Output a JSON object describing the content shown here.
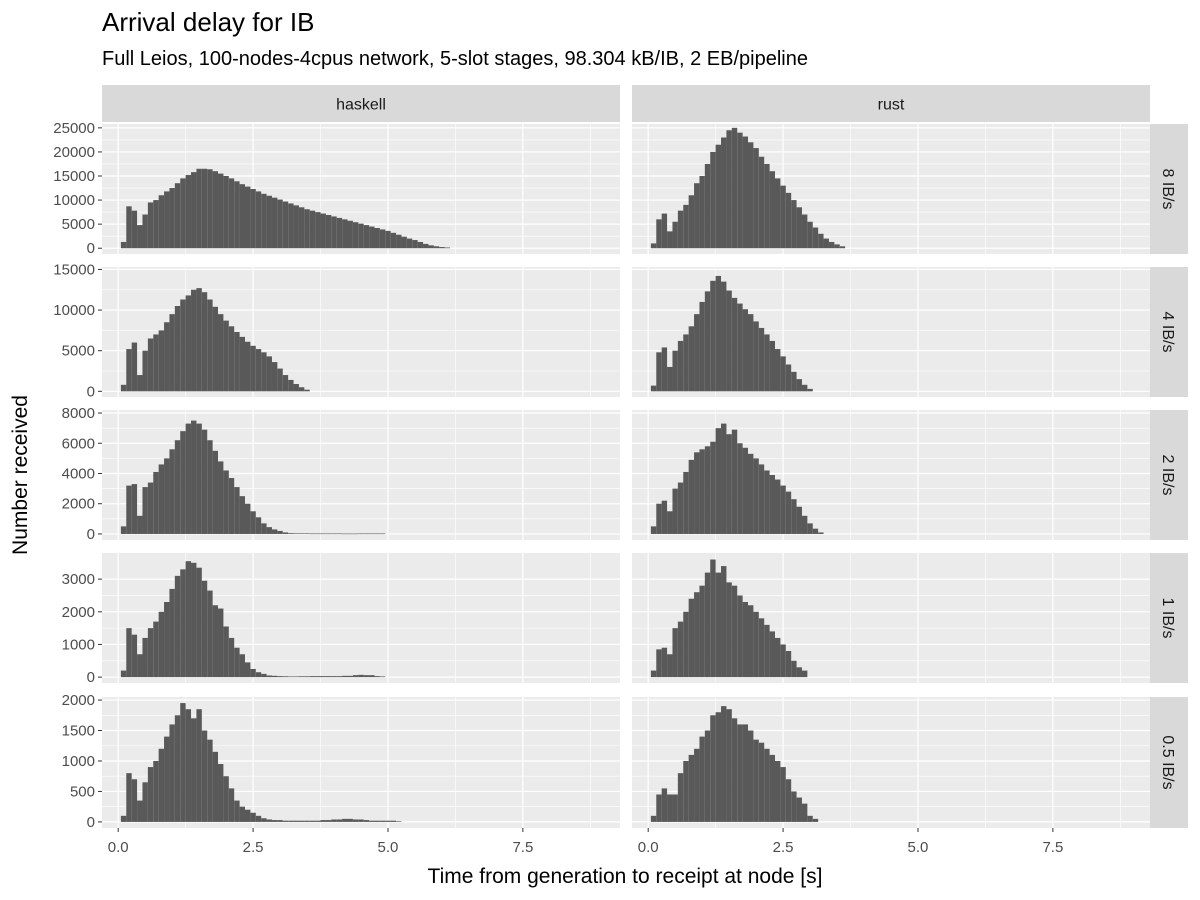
{
  "chart_data": {
    "type": "bar",
    "title": "Arrival delay for IB",
    "subtitle": "Full Leios, 100-nodes-4cpus network, 5-slot stages, 98.304 kB/IB, 2 EB/pipeline",
    "xlabel": "Time from generation to receipt at node [s]",
    "ylabel": "Number received",
    "xlim": [
      -0.3,
      9.3
    ],
    "x_ticks": [
      0.0,
      2.5,
      5.0,
      7.5
    ],
    "x_tick_labels": [
      "0.0",
      "2.5",
      "5.0",
      "7.5"
    ],
    "bin_start": 0.1,
    "bin_width": 0.1,
    "columns": [
      "haskell",
      "rust"
    ],
    "panels": [
      {
        "row": "8 IB/s",
        "ylim": [
          -1200,
          25800
        ],
        "y_ticks": [
          0,
          5000,
          10000,
          15000,
          20000,
          25000
        ],
        "y_tick_labels": [
          "0",
          "5000",
          "10000",
          "15000",
          "20000",
          "25000"
        ],
        "series": [
          {
            "name": "haskell",
            "values": [
              1300,
              8700,
              7800,
              4800,
              7000,
              9500,
              10000,
              11000,
              11800,
              12500,
              13500,
              14500,
              15200,
              15800,
              16500,
              16500,
              16400,
              16000,
              15500,
              15000,
              14500,
              13900,
              13300,
              12800,
              12300,
              11800,
              11300,
              10900,
              10500,
              10100,
              9700,
              9300,
              8900,
              8500,
              8100,
              7800,
              7500,
              7200,
              6900,
              6600,
              6300,
              6000,
              5700,
              5400,
              5100,
              4800,
              4500,
              4200,
              3900,
              3600,
              3200,
              2800,
              2400,
              2000,
              1700,
              1300,
              900,
              600,
              400,
              250,
              150
            ]
          },
          {
            "name": "rust",
            "values": [
              1000,
              6000,
              7200,
              3500,
              5500,
              7800,
              9000,
              11000,
              13500,
              15000,
              17500,
              20000,
              21500,
              23000,
              24500,
              25000,
              24000,
              23200,
              22000,
              20800,
              19000,
              17500,
              16000,
              14500,
              13000,
              11500,
              10000,
              8500,
              7000,
              5500,
              4300,
              3000,
              2000,
              1300,
              800,
              400
            ]
          }
        ]
      },
      {
        "row": "4 IB/s",
        "ylim": [
          -700,
          15300
        ],
        "y_ticks": [
          0,
          5000,
          10000,
          15000
        ],
        "y_tick_labels": [
          "0",
          "5000",
          "10000",
          "15000"
        ],
        "series": [
          {
            "name": "haskell",
            "values": [
              800,
              5200,
              6000,
              2000,
              5000,
              6500,
              7000,
              7500,
              8500,
              9500,
              10500,
              11300,
              11800,
              12500,
              12700,
              12200,
              11300,
              10400,
              9500,
              8700,
              8000,
              7300,
              6700,
              6100,
              5600,
              5200,
              4800,
              4300,
              3600,
              2800,
              2000,
              1400,
              900,
              500,
              200
            ]
          },
          {
            "name": "rust",
            "values": [
              700,
              4800,
              5400,
              3000,
              5000,
              6200,
              7000,
              8000,
              9500,
              11000,
              12300,
              13600,
              14200,
              13500,
              12400,
              11500,
              10800,
              10100,
              9500,
              8600,
              7800,
              7000,
              6200,
              5200,
              4300,
              3300,
              2400,
              1500,
              800,
              300
            ]
          }
        ]
      },
      {
        "row": "2 IB/s",
        "ylim": [
          -400,
          8200
        ],
        "y_ticks": [
          0,
          2000,
          4000,
          6000,
          8000
        ],
        "y_tick_labels": [
          "0",
          "2000",
          "4000",
          "6000",
          "8000"
        ],
        "series": [
          {
            "name": "haskell",
            "values": [
              500,
              3200,
              3300,
              1200,
              3100,
              3400,
              4100,
              4600,
              5000,
              5600,
              6200,
              6800,
              7300,
              7500,
              7300,
              6900,
              6200,
              5500,
              4800,
              4200,
              3700,
              3100,
              2500,
              2000,
              1500,
              1100,
              700,
              450,
              300,
              200,
              100,
              50,
              40,
              40,
              35,
              30,
              30,
              30,
              30,
              30,
              30,
              25,
              25,
              25,
              30,
              30,
              30,
              30,
              30
            ]
          },
          {
            "name": "rust",
            "values": [
              500,
              2000,
              2200,
              1500,
              3000,
              3400,
              4100,
              4900,
              5400,
              5600,
              5800,
              6100,
              7000,
              7300,
              6600,
              6900,
              6000,
              5700,
              5300,
              5000,
              4600,
              4200,
              3900,
              3600,
              3200,
              2800,
              2300,
              1800,
              1200,
              700,
              350,
              100
            ]
          }
        ]
      },
      {
        "row": "1 IB/s",
        "ylim": [
          -180,
          3800
        ],
        "y_ticks": [
          0,
          1000,
          2000,
          3000
        ],
        "y_tick_labels": [
          "0",
          "1000",
          "2000",
          "3000"
        ],
        "series": [
          {
            "name": "haskell",
            "values": [
              200,
              1500,
              1300,
              700,
              1200,
              1500,
              1700,
              2000,
              2300,
              2700,
              3100,
              3300,
              3550,
              3500,
              3350,
              2950,
              2650,
              2200,
              2100,
              1550,
              1200,
              900,
              700,
              450,
              250,
              150,
              100,
              50,
              40,
              30,
              25,
              20,
              20,
              25,
              25,
              30,
              30,
              30,
              30,
              30,
              30,
              40,
              40,
              60,
              70,
              60,
              60,
              30,
              20
            ]
          },
          {
            "name": "rust",
            "values": [
              200,
              850,
              900,
              700,
              1500,
              1700,
              2000,
              2400,
              2600,
              2800,
              3200,
              3600,
              3200,
              3400,
              2900,
              2800,
              2500,
              2300,
              2200,
              2000,
              1800,
              1600,
              1400,
              1200,
              1000,
              800,
              500,
              300,
              200
            ]
          }
        ]
      },
      {
        "row": "0.5 IB/s",
        "ylim": [
          -100,
          2050
        ],
        "y_ticks": [
          0,
          500,
          1000,
          1500,
          2000
        ],
        "y_tick_labels": [
          "0",
          "500",
          "1000",
          "1500",
          "2000"
        ],
        "series": [
          {
            "name": "haskell",
            "values": [
              100,
              800,
              700,
              350,
              650,
              900,
              1000,
              1200,
              1400,
              1600,
              1750,
              1950,
              1850,
              1700,
              1850,
              1500,
              1350,
              1150,
              950,
              750,
              550,
              350,
              250,
              200,
              150,
              100,
              60,
              40,
              30,
              30,
              20,
              20,
              20,
              20,
              20,
              20,
              20,
              30,
              30,
              40,
              40,
              50,
              50,
              40,
              40,
              30,
              20,
              20,
              20,
              20,
              20,
              10
            ]
          },
          {
            "name": "rust",
            "values": [
              100,
              450,
              550,
              450,
              450,
              800,
              1000,
              1100,
              1200,
              1400,
              1500,
              1750,
              1800,
              1900,
              1850,
              1700,
              1600,
              1600,
              1500,
              1350,
              1300,
              1200,
              1100,
              1000,
              900,
              700,
              500,
              400,
              300,
              100,
              50
            ]
          }
        ]
      }
    ]
  }
}
